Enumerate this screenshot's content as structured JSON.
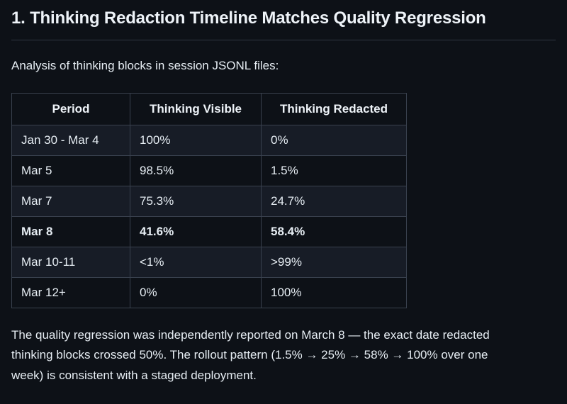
{
  "page": {
    "background_color": "#0d1117",
    "text_color": "#e6edf3",
    "border_color": "#39414e",
    "alt_row_color": "#171c26"
  },
  "heading": "1. Thinking Redaction Timeline Matches Quality Regression",
  "intro": "Analysis of thinking blocks in session JSONL files:",
  "table": {
    "headers": [
      "Period",
      "Thinking Visible",
      "Thinking Redacted"
    ],
    "rows": [
      {
        "period": "Jan 30 - Mar 4",
        "visible": "100%",
        "redacted": "0%",
        "bold": false
      },
      {
        "period": "Mar 5",
        "visible": "98.5%",
        "redacted": "1.5%",
        "bold": false
      },
      {
        "period": "Mar 7",
        "visible": "75.3%",
        "redacted": "24.7%",
        "bold": false
      },
      {
        "period": "Mar 8",
        "visible": "41.6%",
        "redacted": "58.4%",
        "bold": true
      },
      {
        "period": "Mar 10-11",
        "visible": "<1%",
        "redacted": ">99%",
        "bold": false
      },
      {
        "period": "Mar 12+",
        "visible": "0%",
        "redacted": "100%",
        "bold": false
      }
    ]
  },
  "footer": "The quality regression was independently reported on March 8 — the exact date redacted thinking blocks crossed 50%. The rollout pattern (1.5% → 25% → 58% → 100% over one week) is consistent with a staged deployment."
}
